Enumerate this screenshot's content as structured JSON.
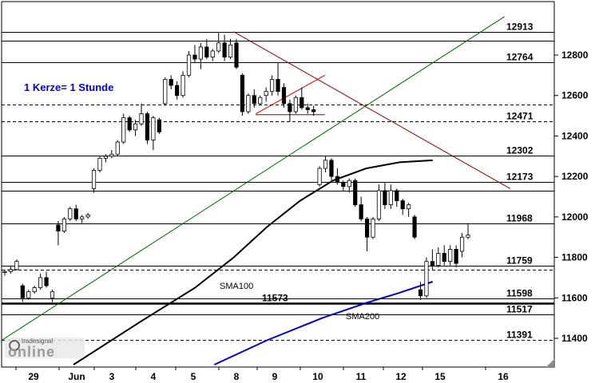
{
  "chart_data": {
    "type": "candlestick",
    "annotation": "1 Kerze= 1 Stunde",
    "logo": "tradesignal online",
    "y_ticks": [
      11400,
      11600,
      11800,
      12000,
      12200,
      12400,
      12600,
      12800
    ],
    "ylim": [
      11270,
      12980
    ],
    "x_ticks": [
      "29",
      "Jun",
      "3",
      "4",
      "5",
      "8",
      "9",
      "10",
      "11",
      "12",
      "15",
      "16"
    ],
    "levels": [
      {
        "value": 12913,
        "style": "solid",
        "label": "12913"
      },
      {
        "value": 12870,
        "style": "solid",
        "label": ""
      },
      {
        "value": 12764,
        "style": "solid",
        "label": "12764"
      },
      {
        "value": 12555,
        "style": "dashed",
        "label": ""
      },
      {
        "value": 12471,
        "style": "dashed",
        "label": "12471"
      },
      {
        "value": 12302,
        "style": "solid",
        "label": "12302"
      },
      {
        "value": 12173,
        "style": "solid",
        "label": "12173"
      },
      {
        "value": 12130,
        "style": "solid",
        "label": ""
      },
      {
        "value": 11968,
        "style": "solid",
        "label": "11968"
      },
      {
        "value": 11759,
        "style": "solid",
        "label": "11759"
      },
      {
        "value": 11740,
        "style": "dashed",
        "label": ""
      },
      {
        "value": 11598,
        "style": "solid",
        "label": "11598"
      },
      {
        "value": 11573,
        "style": "thick",
        "label": "11573"
      },
      {
        "value": 11517,
        "style": "solid",
        "label": "11517"
      },
      {
        "value": 11391,
        "style": "dashed",
        "label": "11391"
      }
    ],
    "sma": [
      {
        "name": "SMA100",
        "color": "#000000",
        "label_value": 11660,
        "x": [
          0.13,
          0.25,
          0.35,
          0.42,
          0.48,
          0.54,
          0.6,
          0.66,
          0.72,
          0.78
        ],
        "y": [
          11270,
          11480,
          11650,
          11800,
          11950,
          12080,
          12180,
          12240,
          12270,
          12280
        ]
      },
      {
        "name": "SMA200",
        "color": "#0000cc",
        "label_value": 11510,
        "x": [
          0.385,
          0.48,
          0.58,
          0.66,
          0.72,
          0.78
        ],
        "y": [
          11270,
          11390,
          11500,
          11575,
          11625,
          11680
        ]
      }
    ],
    "trendlines": [
      {
        "color": "#006600",
        "x": [
          0.0,
          0.91
        ],
        "y": [
          11390,
          12990
        ]
      },
      {
        "color": "#800000",
        "x": [
          0.42,
          0.92
        ],
        "y": [
          12915,
          12140
        ]
      },
      {
        "color": "#cc0000",
        "x": [
          0.46,
          0.585
        ],
        "y": [
          12510,
          12700
        ]
      },
      {
        "color": "#800000",
        "x": [
          0.46,
          0.585
        ],
        "y": [
          12505,
          12505
        ]
      }
    ],
    "candles": [
      {
        "o": 11725,
        "h": 11740,
        "l": 11710,
        "c": 11730
      },
      {
        "o": 11730,
        "h": 11760,
        "l": 11720,
        "c": 11740
      },
      {
        "o": 11740,
        "h": 11790,
        "l": 11735,
        "c": 11780
      },
      {
        "o": 11660,
        "h": 11670,
        "l": 11580,
        "c": 11600
      },
      {
        "o": 11600,
        "h": 11640,
        "l": 11590,
        "c": 11630
      },
      {
        "o": 11630,
        "h": 11660,
        "l": 11620,
        "c": 11650
      },
      {
        "o": 11650,
        "h": 11720,
        "l": 11640,
        "c": 11700
      },
      {
        "o": 11700,
        "h": 11730,
        "l": 11650,
        "c": 11660
      },
      {
        "o": 11600,
        "h": 11640,
        "l": 11580,
        "c": 11630
      },
      {
        "o": 11960,
        "h": 11980,
        "l": 11860,
        "c": 11930
      },
      {
        "o": 11930,
        "h": 12000,
        "l": 11920,
        "c": 11990
      },
      {
        "o": 11990,
        "h": 12050,
        "l": 11980,
        "c": 12040
      },
      {
        "o": 12040,
        "h": 12060,
        "l": 11980,
        "c": 11990
      },
      {
        "o": 11990,
        "h": 12010,
        "l": 11970,
        "c": 12000
      },
      {
        "o": 12000,
        "h": 12020,
        "l": 11990,
        "c": 12010
      },
      {
        "o": 12140,
        "h": 12240,
        "l": 12120,
        "c": 12230
      },
      {
        "o": 12230,
        "h": 12300,
        "l": 12220,
        "c": 12290
      },
      {
        "o": 12290,
        "h": 12310,
        "l": 12270,
        "c": 12300
      },
      {
        "o": 12300,
        "h": 12330,
        "l": 12290,
        "c": 12310
      },
      {
        "o": 12310,
        "h": 12380,
        "l": 12300,
        "c": 12370
      },
      {
        "o": 12370,
        "h": 12510,
        "l": 12360,
        "c": 12490
      },
      {
        "o": 12490,
        "h": 12500,
        "l": 12420,
        "c": 12430
      },
      {
        "o": 12430,
        "h": 12480,
        "l": 12400,
        "c": 12460
      },
      {
        "o": 12460,
        "h": 12560,
        "l": 12450,
        "c": 12510
      },
      {
        "o": 12510,
        "h": 12520,
        "l": 12360,
        "c": 12380
      },
      {
        "o": 12380,
        "h": 12500,
        "l": 12330,
        "c": 12490
      },
      {
        "o": 12480,
        "h": 12490,
        "l": 12410,
        "c": 12420
      },
      {
        "o": 12560,
        "h": 12690,
        "l": 12550,
        "c": 12680
      },
      {
        "o": 12680,
        "h": 12700,
        "l": 12630,
        "c": 12650
      },
      {
        "o": 12650,
        "h": 12670,
        "l": 12580,
        "c": 12600
      },
      {
        "o": 12600,
        "h": 12720,
        "l": 12590,
        "c": 12700
      },
      {
        "o": 12700,
        "h": 12820,
        "l": 12690,
        "c": 12800
      },
      {
        "o": 12800,
        "h": 12850,
        "l": 12760,
        "c": 12780
      },
      {
        "o": 12780,
        "h": 12860,
        "l": 12730,
        "c": 12840
      },
      {
        "o": 12840,
        "h": 12880,
        "l": 12780,
        "c": 12790
      },
      {
        "o": 12790,
        "h": 12830,
        "l": 12770,
        "c": 12820
      },
      {
        "o": 12820,
        "h": 12910,
        "l": 12810,
        "c": 12860
      },
      {
        "o": 12860,
        "h": 12900,
        "l": 12770,
        "c": 12790
      },
      {
        "o": 12790,
        "h": 12880,
        "l": 12780,
        "c": 12850
      },
      {
        "o": 12860,
        "h": 12880,
        "l": 12730,
        "c": 12740
      },
      {
        "o": 12700,
        "h": 12710,
        "l": 12500,
        "c": 12520
      },
      {
        "o": 12520,
        "h": 12610,
        "l": 12510,
        "c": 12600
      },
      {
        "o": 12600,
        "h": 12630,
        "l": 12540,
        "c": 12560
      },
      {
        "o": 12560,
        "h": 12600,
        "l": 12550,
        "c": 12590
      },
      {
        "o": 12600,
        "h": 12640,
        "l": 12570,
        "c": 12620
      },
      {
        "o": 12620,
        "h": 12700,
        "l": 12600,
        "c": 12680
      },
      {
        "o": 12680,
        "h": 12760,
        "l": 12600,
        "c": 12620
      },
      {
        "o": 12640,
        "h": 12660,
        "l": 12540,
        "c": 12560
      },
      {
        "o": 12560,
        "h": 12580,
        "l": 12470,
        "c": 12520
      },
      {
        "o": 12520,
        "h": 12600,
        "l": 12510,
        "c": 12590
      },
      {
        "o": 12590,
        "h": 12640,
        "l": 12530,
        "c": 12540
      },
      {
        "o": 12540,
        "h": 12560,
        "l": 12510,
        "c": 12530
      },
      {
        "o": 12530,
        "h": 12550,
        "l": 12500,
        "c": 12520
      },
      {
        "o": 12160,
        "h": 12250,
        "l": 12150,
        "c": 12240
      },
      {
        "o": 12240,
        "h": 12300,
        "l": 12220,
        "c": 12280
      },
      {
        "o": 12280,
        "h": 12290,
        "l": 12180,
        "c": 12200
      },
      {
        "o": 12200,
        "h": 12240,
        "l": 12160,
        "c": 12170
      },
      {
        "o": 12170,
        "h": 12180,
        "l": 12130,
        "c": 12150
      },
      {
        "o": 12150,
        "h": 12190,
        "l": 12120,
        "c": 12180
      },
      {
        "o": 12180,
        "h": 12190,
        "l": 12050,
        "c": 12060
      },
      {
        "o": 12060,
        "h": 12100,
        "l": 11980,
        "c": 11990
      },
      {
        "o": 11990,
        "h": 12000,
        "l": 11830,
        "c": 11900
      },
      {
        "o": 11900,
        "h": 12000,
        "l": 11890,
        "c": 11990
      },
      {
        "o": 11990,
        "h": 12160,
        "l": 11980,
        "c": 12130
      },
      {
        "o": 12130,
        "h": 12170,
        "l": 12040,
        "c": 12060
      },
      {
        "o": 12060,
        "h": 12160,
        "l": 12040,
        "c": 12130
      },
      {
        "o": 12130,
        "h": 12140,
        "l": 12050,
        "c": 12080
      },
      {
        "o": 12080,
        "h": 12090,
        "l": 12010,
        "c": 12040
      },
      {
        "o": 12040,
        "h": 12070,
        "l": 12000,
        "c": 12060
      },
      {
        "o": 12000,
        "h": 12010,
        "l": 11890,
        "c": 11900
      },
      {
        "o": 11640,
        "h": 11680,
        "l": 11590,
        "c": 11610
      },
      {
        "o": 11610,
        "h": 11800,
        "l": 11600,
        "c": 11780
      },
      {
        "o": 11780,
        "h": 11840,
        "l": 11740,
        "c": 11760
      },
      {
        "o": 11760,
        "h": 11850,
        "l": 11750,
        "c": 11820
      },
      {
        "o": 11820,
        "h": 11860,
        "l": 11760,
        "c": 11780
      },
      {
        "o": 11780,
        "h": 11860,
        "l": 11760,
        "c": 11840
      },
      {
        "o": 11840,
        "h": 11860,
        "l": 11750,
        "c": 11770
      },
      {
        "o": 11830,
        "h": 11920,
        "l": 11800,
        "c": 11900
      },
      {
        "o": 11900,
        "h": 11970,
        "l": 11890,
        "c": 11910
      }
    ]
  }
}
